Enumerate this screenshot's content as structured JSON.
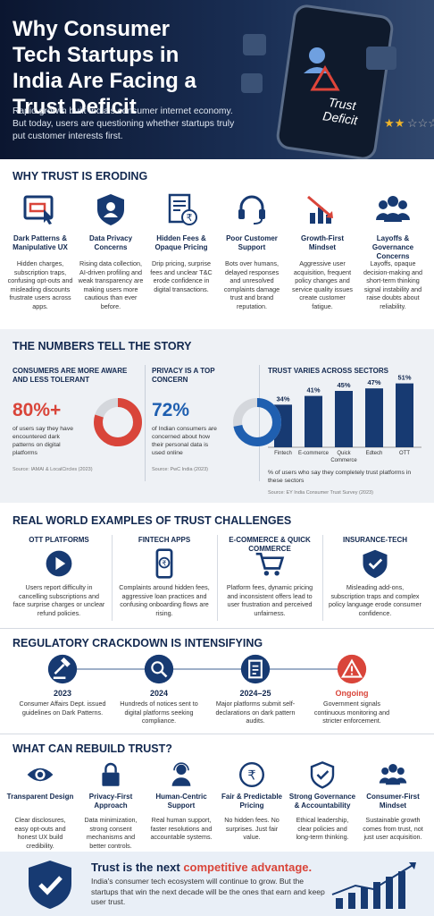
{
  "header": {
    "title": "Why Consumer Tech Startups in India Are Facing a Trust Deficit",
    "subtitle": "Rapid growth built India's consumer internet economy. But today, users are questioning whether startups truly put customer interests first.",
    "badge": "Trust Deficit"
  },
  "eroding": {
    "heading": "WHY TRUST IS ERODING",
    "items": [
      {
        "title": "Dark Patterns & Manipulative UX",
        "text": "Hidden charges, subscription traps, confusing opt-outs and misleading discounts frustrate users across apps."
      },
      {
        "title": "Data Privacy Concerns",
        "text": "Rising data collection, AI-driven profiling and weak transparency are making users more cautious than ever before."
      },
      {
        "title": "Hidden Fees & Opaque Pricing",
        "text": "Drip pricing, surprise fees and unclear T&C erode confidence in digital transactions."
      },
      {
        "title": "Poor Customer Support",
        "text": "Bots over humans, delayed responses and unresolved complaints damage trust and brand reputation."
      },
      {
        "title": "Growth-First Mindset",
        "text": "Aggressive user acquisition, frequent policy changes and service quality issues create customer fatigue."
      },
      {
        "title": "Layoffs & Governance Concerns",
        "text": "Layoffs, opaque decision-making and short-term thinking signal instability and raise doubts about reliability."
      }
    ]
  },
  "numbers": {
    "heading": "THE NUMBERS TELL THE STORY",
    "cards": [
      {
        "title": "CONSUMERS ARE MORE AWARE AND LESS TOLERANT",
        "value": 80,
        "value_label": "80%+",
        "color": "#d9453a",
        "text": "of users say they have encountered dark patterns on digital platforms",
        "source": "Source: IAMAI & LocalCircles (2023)"
      },
      {
        "title": "PRIVACY IS A TOP CONCERN",
        "value": 72,
        "value_label": "72%",
        "color": "#1f5fb0",
        "text": "of Indian consumers are concerned about how their personal data is used online",
        "source": "Source: PwC India (2023)"
      }
    ]
  },
  "chart_data": {
    "type": "bar",
    "title": "TRUST VARIES ACROSS SECTORS",
    "categories": [
      "Fintech",
      "E-commerce",
      "Quick Commerce",
      "Edtech",
      "OTT"
    ],
    "values": [
      34,
      41,
      45,
      47,
      51
    ],
    "value_labels": [
      "34%",
      "41%",
      "45%",
      "47%",
      "51%"
    ],
    "color": "#173a72",
    "caption": "% of users who say they completely trust platforms in these sectors",
    "source": "Source: EY India Consumer Trust Survey (2023)"
  },
  "examples": {
    "heading": "REAL WORLD EXAMPLES OF TRUST CHALLENGES",
    "items": [
      {
        "title": "OTT PLATFORMS",
        "text": "Users report difficulty in cancelling subscriptions and face surprise charges or unclear refund policies."
      },
      {
        "title": "FINTECH APPS",
        "text": "Complaints around hidden fees, aggressive loan practices and confusing onboarding flows are rising."
      },
      {
        "title": "E-COMMERCE & QUICK COMMERCE",
        "text": "Platform fees, dynamic pricing and inconsistent offers lead to user frustration and perceived unfairness."
      },
      {
        "title": "INSURANCE-TECH",
        "text": "Misleading add-ons, subscription traps and complex policy language erode consumer confidence."
      }
    ]
  },
  "regulation": {
    "heading": "REGULATORY CRACKDOWN IS INTENSIFYING",
    "items": [
      {
        "year": "2023",
        "text": "Consumer Affairs Dept. issued guidelines on Dark Patterns."
      },
      {
        "year": "2024",
        "text": "Hundreds of notices sent to digital platforms seeking compliance."
      },
      {
        "year": "2024–25",
        "text": "Major platforms submit self-declarations on dark pattern audits."
      },
      {
        "year": "Ongoing",
        "text": "Government signals continuous monitoring and stricter enforcement."
      }
    ]
  },
  "rebuild": {
    "heading": "WHAT CAN REBUILD TRUST?",
    "items": [
      {
        "title": "Transparent Design",
        "text": "Clear disclosures, easy opt-outs and honest UX build credibility."
      },
      {
        "title": "Privacy-First Approach",
        "text": "Data minimization, strong consent mechanisms and better controls."
      },
      {
        "title": "Human-Centric Support",
        "text": "Real human support, faster resolutions and accountable systems."
      },
      {
        "title": "Fair & Predictable Pricing",
        "text": "No hidden fees. No surprises. Just fair value."
      },
      {
        "title": "Strong Governance & Accountability",
        "text": "Ethical leadership, clear policies and long-term thinking."
      },
      {
        "title": "Consumer-First Mindset",
        "text": "Sustainable growth comes from trust, not just user acquisition."
      }
    ]
  },
  "footer": {
    "headline_start": "Trust is the next",
    "headline_accent": "competitive advantage.",
    "text": "India's consumer tech ecosystem will continue to grow. But the startups that win the next decade will be the ones that earn and keep user trust."
  }
}
